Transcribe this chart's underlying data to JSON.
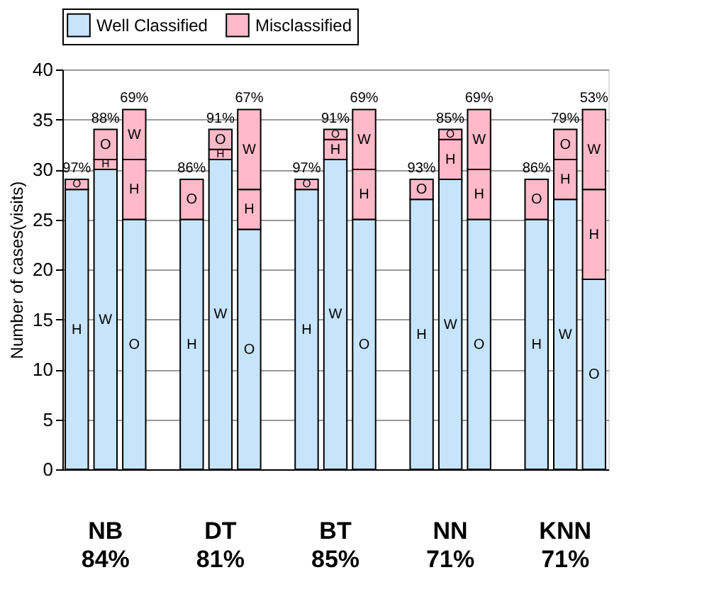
{
  "chart_data": {
    "type": "bar",
    "stacked": true,
    "ylabel": "Number of cases(visits)",
    "categories": [
      null,
      null,
      null,
      null,
      null,
      null,
      null,
      null,
      null,
      null,
      null,
      null,
      null,
      null,
      null
    ],
    "series": [
      {
        "name": "Well Classified",
        "color": "#c6e4fb",
        "values": [
          28,
          30,
          25,
          25,
          31,
          24,
          28,
          31,
          25,
          27,
          29,
          25,
          25,
          27,
          19
        ],
        "value_labels": [
          "H",
          "W",
          "O",
          "H",
          "W",
          "O",
          "H",
          "W",
          "O",
          "H",
          "W",
          "O",
          "H",
          "W",
          "O"
        ]
      },
      {
        "name": "Misclassified",
        "color": "#ffb9c9",
        "values": [
          1,
          1,
          6,
          4,
          1,
          4,
          1,
          2,
          5,
          2,
          4,
          5,
          4,
          4,
          9
        ],
        "value_labels": [
          "O",
          "H",
          "H",
          "O",
          "H",
          "H",
          "O",
          "H",
          "H",
          "O",
          "H",
          "H",
          "O",
          "H",
          "H"
        ]
      },
      {
        "color": "#ffb9c9",
        "values": [
          null,
          3,
          5,
          null,
          2,
          8,
          null,
          1,
          6,
          null,
          1,
          6,
          null,
          3,
          8
        ],
        "value_labels": [
          null,
          "O",
          "W",
          null,
          "O",
          "W",
          null,
          "O",
          "W",
          null,
          "O",
          "W",
          null,
          "O",
          "W"
        ]
      }
    ],
    "annotations": [
      "97%",
      "88%",
      "69%",
      "86%",
      "91%",
      "67%",
      "97%",
      "91%",
      "69%",
      "93%",
      "85%",
      "69%",
      "86%",
      "79%",
      "53%",
      "NB",
      "84%",
      "DT",
      "81%",
      "BT",
      "85%",
      "NN",
      "71%",
      "KNN",
      "71%"
    ],
    "ylim": [
      0,
      40
    ],
    "yticks": [
      0,
      5,
      10,
      15,
      20,
      25,
      30,
      35,
      40
    ],
    "grid": "y",
    "legend": "top"
  }
}
